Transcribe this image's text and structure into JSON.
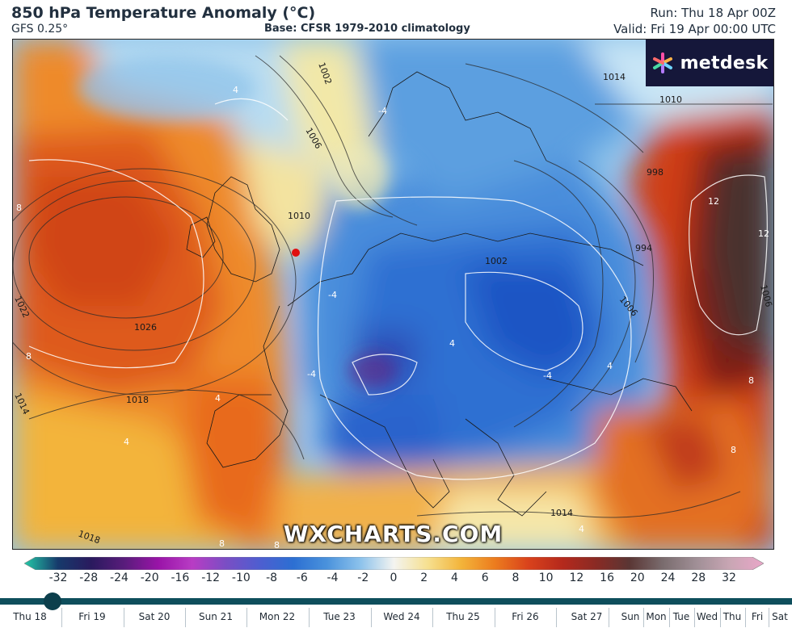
{
  "header": {
    "title": "850 hPa Temperature Anomaly (°C)",
    "model": "GFS 0.25°",
    "base": "Base: CFSR 1979-2010 climatology",
    "run": "Run: Thu 18 Apr 00Z",
    "valid": "Valid: Fri 19 Apr 00:00 UTC"
  },
  "brand": {
    "name": "metdesk",
    "icon": "metdesk-logo-icon"
  },
  "watermark": "WXCHARTS.COM",
  "map": {
    "isobar_labels": [
      "1002",
      "1006",
      "1010",
      "1014",
      "998",
      "994",
      "1006",
      "1022",
      "1026",
      "1018",
      "1014",
      "1014",
      "1018",
      "1006",
      "1002",
      "1010"
    ],
    "anomaly_labels": [
      "8",
      "4",
      "-4",
      "-4",
      "4",
      "12",
      "12",
      "8",
      "8",
      "4",
      "-4",
      "-4",
      "4",
      "4",
      "8",
      "8",
      "8",
      "4"
    ],
    "city_marker_color": "#e01010"
  },
  "colorbar": {
    "ticks": [
      "-32",
      "-28",
      "-24",
      "-20",
      "-16",
      "-12",
      "-10",
      "-8",
      "-6",
      "-4",
      "-2",
      "0",
      "2",
      "4",
      "6",
      "8",
      "10",
      "12",
      "16",
      "20",
      "24",
      "28",
      "32"
    ],
    "colors": [
      "#24c9a8",
      "#163a6b",
      "#2a1a5e",
      "#5a1c7c",
      "#9a14a8",
      "#b83cc4",
      "#7a4ec4",
      "#4e5ed0",
      "#2c6fd2",
      "#4a92dc",
      "#8cc2ec",
      "#f4f4f0",
      "#f6e090",
      "#f3b43a",
      "#ec7c1e",
      "#d9421c",
      "#b5291c",
      "#8a2a24",
      "#5a3634",
      "#7a6c6e",
      "#a08f96",
      "#c9a6b4",
      "#e9a6c8"
    ]
  },
  "timeline": {
    "days": [
      "Thu 18",
      "Fri 19",
      "Sat 20",
      "Sun 21",
      "Mon 22",
      "Tue 23",
      "Wed 24",
      "Thu 25",
      "Fri 26",
      "Sat 27",
      "Sun",
      "Mon",
      "Tue",
      "Wed",
      "Thu",
      "Fri",
      "Sat"
    ],
    "current_index": 1,
    "progress": 0.066
  }
}
